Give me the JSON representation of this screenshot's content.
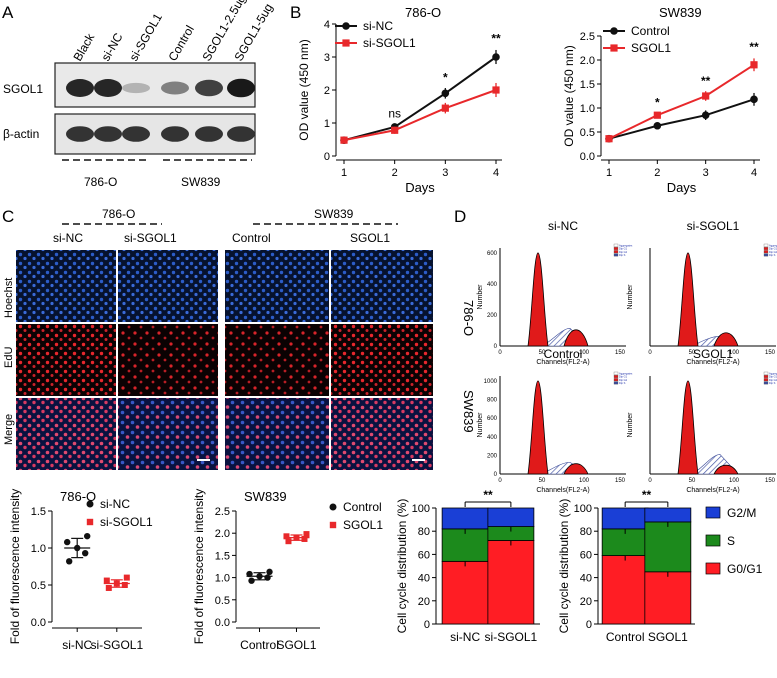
{
  "panels": {
    "A": "A",
    "B": "B",
    "C": "C",
    "D": "D"
  },
  "western_blot": {
    "lanes": [
      "Black",
      "si-NC",
      "si-SGOL1",
      "Control",
      "SGOL1-2.5ug",
      "SGOL1-5ug"
    ],
    "rows": [
      "SGOL1",
      "β-actin"
    ],
    "groups": [
      "786-O",
      "SW839"
    ],
    "sgol1_band_intensity": [
      0.85,
      0.85,
      0.3,
      0.5,
      0.75,
      0.9
    ],
    "actin_band_intensity": [
      0.8,
      0.8,
      0.8,
      0.8,
      0.8,
      0.8
    ]
  },
  "edu_imaging": {
    "groups": [
      "786-O",
      "SW839"
    ],
    "columns": [
      "si-NC",
      "si-SGOL1",
      "Control",
      "SGOL1"
    ],
    "rows": [
      "Hoechst",
      "EdU",
      "Merge"
    ]
  },
  "flow": {
    "row_labels": [
      "786-O",
      "SW839"
    ],
    "titles": [
      "si-NC",
      "si-SGOL1",
      "Control",
      "SGOL1"
    ],
    "ylabel": "Number",
    "xlabel": "Channels(FL2-A)",
    "x_ticks": [
      "0",
      "50",
      "100",
      "150"
    ],
    "y_ticks_top_left": [
      "0",
      "200",
      "400",
      "600"
    ],
    "y_ticks_bottom_left": [
      "0",
      "200",
      "400",
      "600",
      "800",
      "1000"
    ],
    "legend": [
      "Aggregates",
      "Dip G1",
      "Dip G2",
      "Dip S"
    ]
  },
  "chart_data": [
    {
      "type": "line",
      "title": "786-O",
      "xlabel": "Days",
      "ylabel": "OD value (450 nm)",
      "x": [
        1,
        2,
        3,
        4
      ],
      "ylim": [
        0,
        4
      ],
      "yticks": [
        "0",
        "1",
        "2",
        "3",
        "4"
      ],
      "series": [
        {
          "name": "si-NC",
          "color": "#111111",
          "values": [
            0.48,
            0.88,
            1.9,
            3.0
          ]
        },
        {
          "name": "si-SGOL1",
          "color": "#e8282b",
          "values": [
            0.48,
            0.78,
            1.45,
            2.0
          ]
        }
      ],
      "annotations": [
        "ns",
        "*",
        "**"
      ]
    },
    {
      "type": "line",
      "title": "SW839",
      "xlabel": "Days",
      "ylabel": "OD value (450 nm)",
      "x": [
        1,
        2,
        3,
        4
      ],
      "ylim": [
        0,
        2.5
      ],
      "yticks": [
        "0.0",
        "0.5",
        "1.0",
        "1.5",
        "2.0",
        "2.5"
      ],
      "series": [
        {
          "name": "Control",
          "color": "#111111",
          "values": [
            0.36,
            0.63,
            0.85,
            1.18
          ]
        },
        {
          "name": "SGOL1",
          "color": "#e8282b",
          "values": [
            0.36,
            0.85,
            1.25,
            1.9
          ]
        }
      ],
      "annotations": [
        "*",
        "**",
        "**"
      ]
    },
    {
      "type": "scatter",
      "title": "786-O",
      "ylabel": "Fold of fluorescence intensity",
      "categories": [
        "si-NC",
        "si-SGOL1"
      ],
      "ylim": [
        0,
        1.5
      ],
      "yticks": [
        "0.0",
        "0.5",
        "1.0",
        "1.5"
      ],
      "series": [
        {
          "name": "si-NC",
          "color": "#111111",
          "values": [
            0.82,
            0.93,
            1.0,
            1.08,
            1.16
          ],
          "mean": 1.0,
          "sd": 0.13
        },
        {
          "name": "si-SGOL1",
          "color": "#e8282b",
          "values": [
            0.46,
            0.5,
            0.52,
            0.56,
            0.6
          ],
          "mean": 0.52,
          "sd": 0.05
        }
      ]
    },
    {
      "type": "scatter",
      "title": "SW839",
      "ylabel": "Fold of fluorescence intensity",
      "categories": [
        "Control",
        "SGOL1"
      ],
      "ylim": [
        0,
        2.5
      ],
      "yticks": [
        "0.0",
        "0.5",
        "1.0",
        "1.5",
        "2.0",
        "2.5"
      ],
      "series": [
        {
          "name": "Control",
          "color": "#111111",
          "values": [
            0.93,
            1.0,
            1.03,
            1.08,
            1.13
          ],
          "mean": 1.03,
          "sd": 0.08
        },
        {
          "name": "SGOL1",
          "color": "#e8282b",
          "values": [
            1.82,
            1.87,
            1.9,
            1.93,
            1.98
          ],
          "mean": 1.9,
          "sd": 0.06
        }
      ]
    },
    {
      "type": "bar",
      "ylabel": "Cell cycle distribution (%)",
      "categories": [
        "si-NC",
        "si-SGOL1"
      ],
      "ylim": [
        0,
        100
      ],
      "yticks": [
        "0",
        "20",
        "40",
        "60",
        "80",
        "100"
      ],
      "series": [
        {
          "name": "G0/G1",
          "color": "#ff1d24",
          "values": [
            54,
            72
          ]
        },
        {
          "name": "S",
          "color": "#1c8a1c",
          "values": [
            28,
            12
          ]
        },
        {
          "name": "G2/M",
          "color": "#1a3fd6",
          "values": [
            18,
            16
          ]
        }
      ],
      "annotations": [
        "**"
      ]
    },
    {
      "type": "bar",
      "ylabel": "Cell cycle distribution (%)",
      "categories": [
        "Control",
        "SGOL1"
      ],
      "ylim": [
        0,
        100
      ],
      "yticks": [
        "0",
        "20",
        "40",
        "60",
        "80",
        "100"
      ],
      "series": [
        {
          "name": "G0/G1",
          "color": "#ff1d24",
          "values": [
            59,
            45
          ]
        },
        {
          "name": "S",
          "color": "#1c8a1c",
          "values": [
            23,
            43
          ]
        },
        {
          "name": "G2/M",
          "color": "#1a3fd6",
          "values": [
            18,
            12
          ]
        }
      ],
      "annotations": [
        "**"
      ],
      "legend": [
        "G2/M",
        "S",
        "G0/G1"
      ]
    }
  ]
}
